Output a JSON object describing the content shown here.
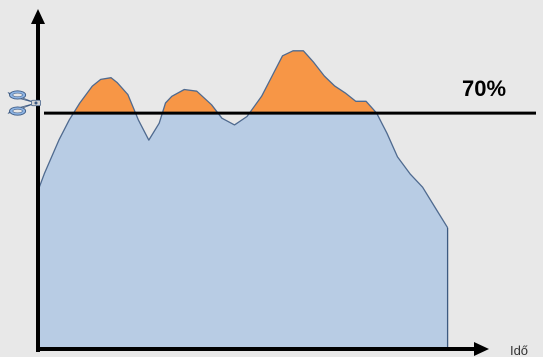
{
  "colors": {
    "background": "#e8e8e8",
    "area_fill": "#b8cce4",
    "area_stroke": "#3d5a80",
    "peak_fill": "#f79646",
    "peak_stroke": "#4f6a8f",
    "axis": "#000000",
    "threshold_line": "#000000",
    "scissors_fill": "#8db3e2",
    "scissors_blade": "#c0c0c0",
    "scissors_stroke": "#3c5a84"
  },
  "icons": {
    "scissors": "scissors-icon"
  },
  "chart_data": {
    "type": "area",
    "xlabel": "Idő",
    "ylabel": "",
    "threshold": {
      "value": 70,
      "label": "70%"
    },
    "xlim": [
      0,
      100
    ],
    "ylim": [
      0,
      100
    ],
    "series": [
      {
        "x": [
          0,
          1.5,
          5,
          7.5,
          10,
          13,
          15,
          17.5,
          19,
          21.5,
          24,
          26.5,
          29,
          30.5,
          32,
          35,
          38,
          41.5,
          44,
          47,
          50,
          53.5,
          56,
          58.5,
          61,
          63.5,
          66,
          68.5,
          71,
          73.5,
          76,
          78.5,
          81,
          83.5,
          86,
          89,
          92,
          95,
          98
        ],
        "values": [
          47,
          52,
          62,
          68,
          73,
          78,
          80,
          80.5,
          79,
          75.5,
          68,
          62,
          67,
          73,
          75,
          77,
          76.5,
          72.5,
          68.5,
          66.5,
          69,
          75,
          81,
          87,
          88.5,
          88.5,
          85,
          81,
          78,
          76,
          73.5,
          73.5,
          70,
          64,
          57,
          52,
          48,
          42,
          36
        ]
      }
    ]
  }
}
